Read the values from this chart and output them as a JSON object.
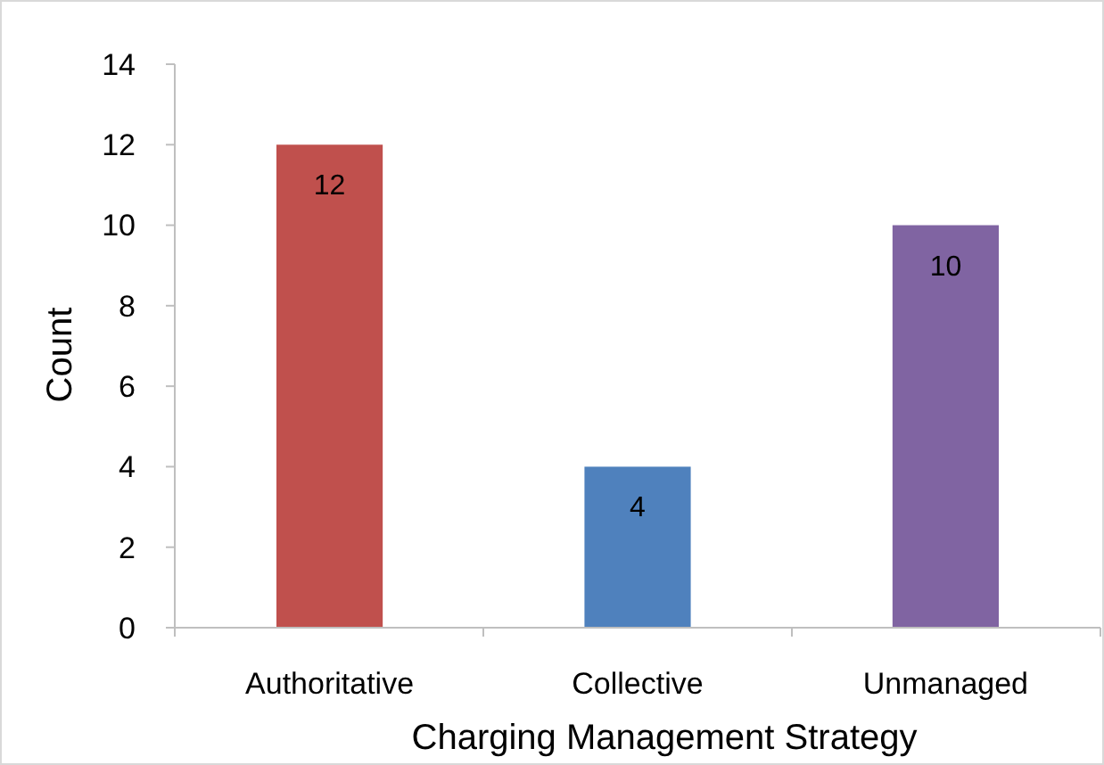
{
  "chart_data": {
    "type": "bar",
    "xlabel": "Charging Management Strategy",
    "ylabel": "Count",
    "categories": [
      "Authoritative",
      "Collective",
      "Unmanaged"
    ],
    "values": [
      12,
      4,
      10
    ],
    "colors": [
      "#c0504d",
      "#4f81bd",
      "#8064a2"
    ],
    "ylim": [
      0,
      14
    ],
    "yticks": [
      0,
      2,
      4,
      6,
      8,
      10,
      12,
      14
    ],
    "grid": false,
    "data_labels": true
  }
}
